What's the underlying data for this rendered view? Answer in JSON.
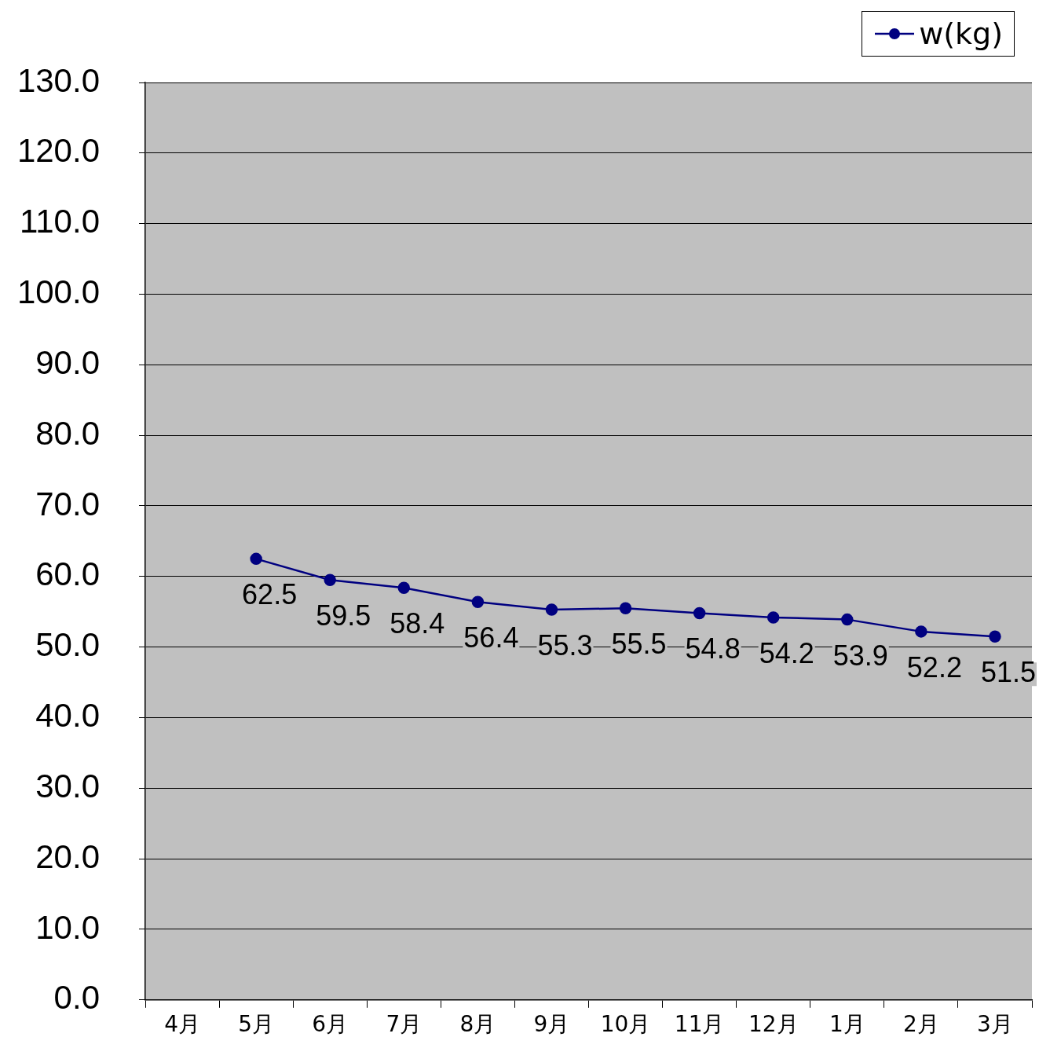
{
  "chart_data": {
    "type": "line",
    "categories": [
      "4月",
      "5月",
      "6月",
      "7月",
      "8月",
      "9月",
      "10月",
      "11月",
      "12月",
      "1月",
      "2月",
      "3月"
    ],
    "series": [
      {
        "name": "w(kg)",
        "color": "#000080",
        "values": [
          null,
          62.5,
          59.5,
          58.4,
          56.4,
          55.3,
          55.5,
          54.8,
          54.2,
          53.9,
          52.2,
          51.5
        ]
      }
    ],
    "ylim": [
      0,
      130
    ],
    "yticks": [
      {
        "value": 0,
        "label": "0.0"
      },
      {
        "value": 10,
        "label": "10.0"
      },
      {
        "value": 20,
        "label": "20.0"
      },
      {
        "value": 30,
        "label": "30.0"
      },
      {
        "value": 40,
        "label": "40.0"
      },
      {
        "value": 50,
        "label": "50.0"
      },
      {
        "value": 60,
        "label": "60.0"
      },
      {
        "value": 70,
        "label": "70.0"
      },
      {
        "value": 80,
        "label": "80.0"
      },
      {
        "value": 90,
        "label": "90.0"
      },
      {
        "value": 100,
        "label": "100.0"
      },
      {
        "value": 110,
        "label": "110.0"
      },
      {
        "value": 120,
        "label": "120.0"
      },
      {
        "value": 130,
        "label": "130.0"
      }
    ],
    "grid": "y",
    "legend": "top right",
    "marker": "circle",
    "line_style": "solid",
    "data_labels": true
  }
}
